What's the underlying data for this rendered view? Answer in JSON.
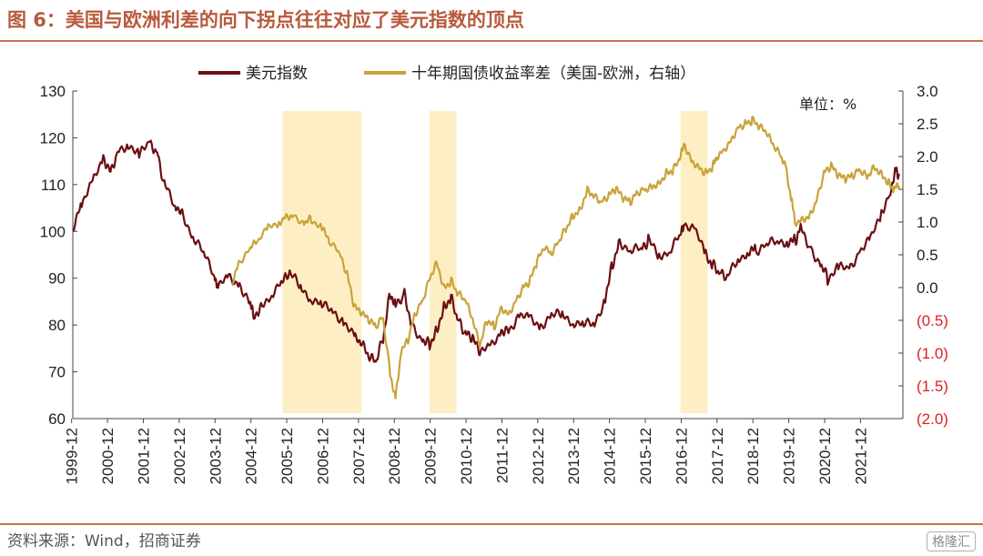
{
  "figure_title": "图 6：美国与欧洲利差的向下拐点往往对应了美元指数的顶点",
  "source_note": "资料来源：Wind，招商证券",
  "watermark": "格隆汇",
  "chart_data": {
    "type": "line",
    "legend_placement": "top",
    "unit_label": "单位：%",
    "x_categories": [
      "1999-12",
      "2000-12",
      "2001-12",
      "2002-12",
      "2003-12",
      "2004-12",
      "2005-12",
      "2006-12",
      "2007-12",
      "2008-12",
      "2009-12",
      "2010-12",
      "2011-12",
      "2012-12",
      "2013-12",
      "2014-12",
      "2015-12",
      "2016-12",
      "2017-12",
      "2018-12",
      "2019-12",
      "2020-12",
      "2021-12"
    ],
    "y_left": {
      "min": 60,
      "max": 130,
      "ticks": [
        "60",
        "70",
        "80",
        "90",
        "100",
        "110",
        "120",
        "130"
      ]
    },
    "y_right": {
      "min": -2.0,
      "max": 3.0,
      "ticks": [
        "(2.0)",
        "(1.5)",
        "(1.0)",
        "(0.5)",
        "0.0",
        "0.5",
        "1.0",
        "1.5",
        "2.0",
        "2.5",
        "3.0"
      ],
      "tick_values": [
        -2.0,
        -1.5,
        -1.0,
        -0.5,
        0.0,
        0.5,
        1.0,
        1.5,
        2.0,
        2.5,
        3.0
      ]
    },
    "highlight_periods": [
      {
        "start": 2005.8,
        "end": 2008.0
      },
      {
        "start": 2009.9,
        "end": 2010.65
      },
      {
        "start": 2016.9,
        "end": 2017.65
      }
    ],
    "series": [
      {
        "name": "美元指数",
        "axis": "left",
        "color": "#6b0f12",
        "points": [
          [
            1999.95,
            101
          ],
          [
            2000.2,
            106
          ],
          [
            2000.5,
            110
          ],
          [
            2000.8,
            116
          ],
          [
            2001.0,
            113
          ],
          [
            2001.2,
            117
          ],
          [
            2001.5,
            119
          ],
          [
            2001.8,
            116
          ],
          [
            2002.1,
            119
          ],
          [
            2002.3,
            117
          ],
          [
            2002.5,
            110
          ],
          [
            2002.8,
            106
          ],
          [
            2003.0,
            104
          ],
          [
            2003.3,
            99
          ],
          [
            2003.6,
            95
          ],
          [
            2003.9,
            91
          ],
          [
            2004.0,
            88
          ],
          [
            2004.3,
            90
          ],
          [
            2004.6,
            89
          ],
          [
            2004.9,
            84
          ],
          [
            2005.0,
            82
          ],
          [
            2005.2,
            84
          ],
          [
            2005.5,
            87
          ],
          [
            2005.8,
            89
          ],
          [
            2006.0,
            91
          ],
          [
            2006.3,
            88
          ],
          [
            2006.6,
            86
          ],
          [
            2006.9,
            84
          ],
          [
            2007.2,
            83
          ],
          [
            2007.5,
            81
          ],
          [
            2007.8,
            77
          ],
          [
            2008.0,
            76
          ],
          [
            2008.2,
            73
          ],
          [
            2008.4,
            72
          ],
          [
            2008.6,
            77
          ],
          [
            2008.8,
            87
          ],
          [
            2008.95,
            84
          ],
          [
            2009.2,
            87
          ],
          [
            2009.4,
            80
          ],
          [
            2009.7,
            77
          ],
          [
            2009.9,
            76
          ],
          [
            2010.1,
            79
          ],
          [
            2010.3,
            84
          ],
          [
            2010.5,
            86
          ],
          [
            2010.7,
            81
          ],
          [
            2010.9,
            78
          ],
          [
            2011.1,
            77
          ],
          [
            2011.3,
            74
          ],
          [
            2011.6,
            75
          ],
          [
            2011.9,
            79
          ],
          [
            2012.1,
            79
          ],
          [
            2012.4,
            82
          ],
          [
            2012.7,
            81
          ],
          [
            2013.0,
            80
          ],
          [
            2013.3,
            82
          ],
          [
            2013.6,
            82
          ],
          [
            2013.9,
            81
          ],
          [
            2014.2,
            80
          ],
          [
            2014.5,
            80
          ],
          [
            2014.8,
            86
          ],
          [
            2015.0,
            93
          ],
          [
            2015.2,
            98
          ],
          [
            2015.5,
            96
          ],
          [
            2015.8,
            96
          ],
          [
            2016.0,
            98
          ],
          [
            2016.3,
            95
          ],
          [
            2016.6,
            96
          ],
          [
            2016.9,
            99
          ],
          [
            2017.0,
            102
          ],
          [
            2017.3,
            100
          ],
          [
            2017.6,
            95
          ],
          [
            2017.8,
            93
          ],
          [
            2018.0,
            91
          ],
          [
            2018.2,
            90
          ],
          [
            2018.5,
            94
          ],
          [
            2018.8,
            96
          ],
          [
            2019.0,
            96
          ],
          [
            2019.3,
            97
          ],
          [
            2019.6,
            98
          ],
          [
            2019.9,
            98
          ],
          [
            2020.1,
            98
          ],
          [
            2020.25,
            101
          ],
          [
            2020.5,
            97
          ],
          [
            2020.8,
            93
          ],
          [
            2021.0,
            90
          ],
          [
            2021.3,
            92
          ],
          [
            2021.6,
            92
          ],
          [
            2021.9,
            96
          ],
          [
            2022.2,
            98
          ],
          [
            2022.5,
            104
          ],
          [
            2022.75,
            109
          ],
          [
            2022.9,
            113
          ],
          [
            2023.0,
            112
          ]
        ]
      },
      {
        "name": "十年期国债收益率差（美国-欧洲，右轴）",
        "axis": "right",
        "color": "#c9a33b",
        "points": [
          [
            2004.4,
            0.1
          ],
          [
            2004.6,
            0.4
          ],
          [
            2004.9,
            0.6
          ],
          [
            2005.1,
            0.7
          ],
          [
            2005.4,
            0.9
          ],
          [
            2005.7,
            1.0
          ],
          [
            2005.9,
            1.1
          ],
          [
            2006.1,
            1.1
          ],
          [
            2006.4,
            1.0
          ],
          [
            2006.6,
            1.05
          ],
          [
            2006.9,
            0.9
          ],
          [
            2007.1,
            0.7
          ],
          [
            2007.4,
            0.5
          ],
          [
            2007.6,
            0.2
          ],
          [
            2007.8,
            -0.3
          ],
          [
            2008.0,
            -0.4
          ],
          [
            2008.2,
            -0.5
          ],
          [
            2008.4,
            -0.6
          ],
          [
            2008.6,
            -0.45
          ],
          [
            2008.8,
            -1.3
          ],
          [
            2008.95,
            -1.7
          ],
          [
            2009.1,
            -1.0
          ],
          [
            2009.3,
            -0.8
          ],
          [
            2009.5,
            -0.4
          ],
          [
            2009.7,
            -0.2
          ],
          [
            2009.9,
            0.15
          ],
          [
            2010.1,
            0.4
          ],
          [
            2010.3,
            0.0
          ],
          [
            2010.5,
            0.1
          ],
          [
            2010.7,
            -0.1
          ],
          [
            2010.9,
            -0.2
          ],
          [
            2011.1,
            -0.5
          ],
          [
            2011.3,
            -0.9
          ],
          [
            2011.5,
            -0.5
          ],
          [
            2011.7,
            -0.6
          ],
          [
            2011.9,
            -0.3
          ],
          [
            2012.1,
            -0.4
          ],
          [
            2012.3,
            -0.2
          ],
          [
            2012.5,
            0.0
          ],
          [
            2012.7,
            0.1
          ],
          [
            2012.9,
            0.4
          ],
          [
            2013.1,
            0.6
          ],
          [
            2013.3,
            0.5
          ],
          [
            2013.5,
            0.7
          ],
          [
            2013.7,
            0.9
          ],
          [
            2013.9,
            1.1
          ],
          [
            2014.1,
            1.2
          ],
          [
            2014.3,
            1.5
          ],
          [
            2014.5,
            1.4
          ],
          [
            2014.7,
            1.3
          ],
          [
            2014.9,
            1.4
          ],
          [
            2015.1,
            1.5
          ],
          [
            2015.3,
            1.35
          ],
          [
            2015.5,
            1.3
          ],
          [
            2015.7,
            1.45
          ],
          [
            2015.9,
            1.5
          ],
          [
            2016.1,
            1.55
          ],
          [
            2016.3,
            1.6
          ],
          [
            2016.5,
            1.75
          ],
          [
            2016.7,
            1.8
          ],
          [
            2016.9,
            2.0
          ],
          [
            2017.0,
            2.2
          ],
          [
            2017.2,
            1.95
          ],
          [
            2017.4,
            1.85
          ],
          [
            2017.6,
            1.75
          ],
          [
            2017.8,
            1.85
          ],
          [
            2017.9,
            2.0
          ],
          [
            2018.1,
            2.1
          ],
          [
            2018.3,
            2.25
          ],
          [
            2018.5,
            2.45
          ],
          [
            2018.7,
            2.5
          ],
          [
            2018.9,
            2.55
          ],
          [
            2019.1,
            2.45
          ],
          [
            2019.3,
            2.35
          ],
          [
            2019.5,
            2.15
          ],
          [
            2019.7,
            2.0
          ],
          [
            2019.85,
            1.8
          ],
          [
            2020.0,
            1.3
          ],
          [
            2020.1,
            1.0
          ],
          [
            2020.3,
            1.05
          ],
          [
            2020.5,
            1.1
          ],
          [
            2020.7,
            1.35
          ],
          [
            2020.9,
            1.75
          ],
          [
            2021.1,
            1.85
          ],
          [
            2021.3,
            1.7
          ],
          [
            2021.5,
            1.65
          ],
          [
            2021.7,
            1.7
          ],
          [
            2021.9,
            1.8
          ],
          [
            2022.1,
            1.7
          ],
          [
            2022.3,
            1.85
          ],
          [
            2022.5,
            1.75
          ],
          [
            2022.7,
            1.6
          ],
          [
            2022.85,
            1.5
          ],
          [
            2023.0,
            1.55
          ]
        ]
      }
    ]
  }
}
